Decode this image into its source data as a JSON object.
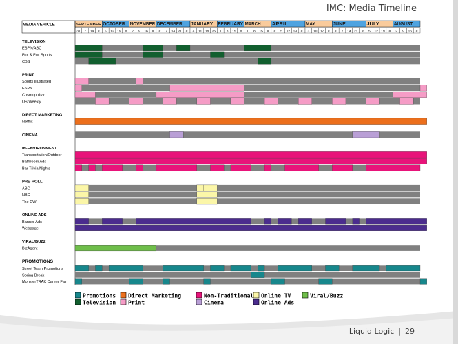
{
  "title": "IMC: Media Timeline",
  "footer": {
    "company": "Liquid Logic",
    "separator": "|",
    "page": "29"
  },
  "chart_data": {
    "type": "gantt",
    "header_label": "MEDIA VEHICLE",
    "months": [
      {
        "name": "SEPTEMBER",
        "weeks": [
          "31",
          "7",
          "14",
          "#"
        ],
        "color": "#f9cb9c"
      },
      {
        "name": "OCTOBER",
        "weeks": [
          "5",
          "12",
          "19",
          "#"
        ],
        "color": "#4fa3e0"
      },
      {
        "name": "NOVEMBER",
        "weeks": [
          "2",
          "9",
          "16",
          "#"
        ],
        "color": "#f9cb9c"
      },
      {
        "name": "DECEMBER",
        "weeks": [
          "#",
          "7",
          "14",
          "21",
          "#"
        ],
        "color": "#4fa3e0"
      },
      {
        "name": "JANUARY",
        "weeks": [
          "4",
          "11",
          "18",
          "25"
        ],
        "color": "#f9cb9c"
      },
      {
        "name": "FEBRUARY",
        "weeks": [
          "1",
          "8",
          "15",
          "#"
        ],
        "color": "#4fa3e0"
      },
      {
        "name": "MARCH",
        "weeks": [
          "1",
          "8",
          "15",
          "#"
        ],
        "color": "#f9cb9c"
      },
      {
        "name": "APRIL",
        "weeks": [
          "#",
          "5",
          "12",
          "19",
          "#"
        ],
        "color": "#4fa3e0"
      },
      {
        "name": "MAY",
        "weeks": [
          "3",
          "10",
          "17",
          "#"
        ],
        "color": "#f9cb9c"
      },
      {
        "name": "JUNE",
        "weeks": [
          "#",
          "7",
          "14",
          "21",
          "#"
        ],
        "color": "#4fa3e0"
      },
      {
        "name": "JULY",
        "weeks": [
          "5",
          "12",
          "19",
          "#"
        ],
        "color": "#f9cb9c"
      },
      {
        "name": "AUGUST",
        "weeks": [
          "2",
          "9",
          "16",
          "#"
        ],
        "color": "#4fa3e0"
      }
    ],
    "colors": {
      "inactive": "#808080",
      "Promotions": "#17878c",
      "Direct Marketing": "#ec6f1c",
      "Non-Traditional": "#e8147a",
      "Online TV": "#fbf6a8",
      "Viral/Buzz": "#6fbe4a",
      "Television": "#125f2f",
      "Print": "#f59cc6",
      "Cinema": "#b99fd6",
      "Online Ads": "#4b2c8e"
    },
    "rows": [
      {
        "label": "TELEVISION",
        "kind": "header"
      },
      {
        "label": "ESPN/ABC",
        "cat": "Television",
        "active": [
          [
            0,
            3
          ],
          [
            10,
            12
          ],
          [
            15,
            16
          ],
          [
            25,
            28
          ]
        ]
      },
      {
        "label": "Fox & Fox Sports",
        "cat": "Television",
        "active": [
          [
            0,
            3
          ],
          [
            10,
            12
          ],
          [
            20,
            21
          ]
        ]
      },
      {
        "label": "CBS",
        "cat": "Television",
        "active": [
          [
            2,
            5
          ],
          [
            27,
            28
          ]
        ]
      },
      {
        "label": "",
        "kind": "spacer"
      },
      {
        "label": "PRINT",
        "kind": "header"
      },
      {
        "label": "Sports Illustrated",
        "cat": "Print",
        "active": [
          [
            0,
            1
          ],
          [
            9,
            9
          ]
        ]
      },
      {
        "label": "ESPN",
        "cat": "Print",
        "active": [
          [
            0,
            0
          ],
          [
            14,
            24
          ],
          [
            51,
            51
          ]
        ]
      },
      {
        "label": "Cosmopolitan",
        "cat": "Print",
        "active": [
          [
            0,
            2
          ],
          [
            12,
            24
          ],
          [
            47,
            51
          ]
        ]
      },
      {
        "label": "US Weekly",
        "cat": "Print",
        "active": [
          [
            3,
            4
          ],
          [
            8,
            9
          ],
          [
            13,
            14
          ],
          [
            18,
            19
          ],
          [
            23,
            24
          ],
          [
            28,
            29
          ],
          [
            33,
            34
          ],
          [
            38,
            39
          ],
          [
            43,
            44
          ],
          [
            48,
            49
          ]
        ]
      },
      {
        "label": "",
        "kind": "spacer"
      },
      {
        "label": "DIRECT MARKETING",
        "kind": "header"
      },
      {
        "label": "Netflix",
        "cat": "Direct Marketing",
        "active": [
          [
            0,
            51
          ]
        ]
      },
      {
        "label": "",
        "kind": "spacer"
      },
      {
        "label": "CINEMA",
        "kind": "header",
        "cat": "Cinema",
        "active": [
          [
            14,
            15
          ],
          [
            41,
            44
          ]
        ]
      },
      {
        "label": "",
        "kind": "spacer"
      },
      {
        "label": "IN-ENVIRONMENT",
        "kind": "header"
      },
      {
        "label": "Transportation/Outdoor",
        "cat": "Non-Traditional",
        "active": [
          [
            0,
            51
          ]
        ]
      },
      {
        "label": "Bathroom Ads",
        "cat": "Non-Traditional",
        "active": [
          [
            0,
            51
          ]
        ]
      },
      {
        "label": "Bar Trivia Nights",
        "cat": "Non-Traditional",
        "active": [
          [
            0,
            0
          ],
          [
            2,
            2
          ],
          [
            4,
            6
          ],
          [
            9,
            9
          ],
          [
            12,
            17
          ],
          [
            20,
            21
          ],
          [
            23,
            25
          ],
          [
            28,
            28
          ],
          [
            31,
            35
          ],
          [
            38,
            40
          ],
          [
            43,
            50
          ]
        ]
      },
      {
        "label": "",
        "kind": "spacer"
      },
      {
        "label": "PRE-ROLL",
        "kind": "header"
      },
      {
        "label": "ABC",
        "cat": "Online TV",
        "active": [
          [
            0,
            1
          ],
          [
            18,
            18
          ],
          [
            19,
            20
          ]
        ]
      },
      {
        "label": "NBC",
        "cat": "Online TV",
        "active": [
          [
            0,
            1
          ],
          [
            18,
            20
          ]
        ]
      },
      {
        "label": "The CW",
        "cat": "Online TV",
        "active": [
          [
            0,
            1
          ],
          [
            18,
            20
          ]
        ]
      },
      {
        "label": "",
        "kind": "spacer"
      },
      {
        "label": "ONLINE ADS",
        "kind": "header"
      },
      {
        "label": "Banner Ads",
        "cat": "Online Ads",
        "active": [
          [
            0,
            1
          ],
          [
            4,
            6
          ],
          [
            9,
            25
          ],
          [
            28,
            28
          ],
          [
            30,
            31
          ],
          [
            33,
            34
          ],
          [
            37,
            39
          ],
          [
            41,
            41
          ],
          [
            43,
            51
          ]
        ]
      },
      {
        "label": "Webpage",
        "cat": "Online Ads",
        "active": [
          [
            0,
            51
          ]
        ]
      },
      {
        "label": "",
        "kind": "spacer"
      },
      {
        "label": "VIRAL/BUZZ",
        "kind": "header"
      },
      {
        "label": "BizAgent",
        "cat": "Viral/Buzz",
        "active": [
          [
            0,
            11
          ]
        ]
      },
      {
        "label": "",
        "kind": "spacer"
      },
      {
        "label": "PROMOTIONS",
        "kind": "header"
      },
      {
        "label": "Street Team Promotions",
        "cat": "Promotions",
        "active": [
          [
            0,
            1
          ],
          [
            3,
            3
          ],
          [
            5,
            9
          ],
          [
            13,
            18
          ],
          [
            20,
            21
          ],
          [
            23,
            25
          ],
          [
            27,
            27
          ],
          [
            30,
            34
          ],
          [
            37,
            38
          ],
          [
            41,
            44
          ],
          [
            46,
            50
          ]
        ]
      },
      {
        "label": "Spring Break",
        "cat": "Promotions",
        "active": [
          [
            26,
            27
          ]
        ]
      },
      {
        "label": "MonsterTRAK Career Fair",
        "cat": "Promotions",
        "active": [
          [
            0,
            0
          ],
          [
            8,
            9
          ],
          [
            13,
            13
          ],
          [
            19,
            19
          ],
          [
            29,
            30
          ],
          [
            36,
            37
          ],
          [
            51,
            51
          ]
        ]
      }
    ],
    "legend": [
      {
        "label": "Promotions"
      },
      {
        "label": "Direct Marketing"
      },
      {
        "label": "Non-Traditional"
      },
      {
        "label": "Online TV"
      },
      {
        "label": "Viral/Buzz"
      },
      {
        "label": "Television"
      },
      {
        "label": "Print"
      },
      {
        "label": "Cinema"
      },
      {
        "label": "Online Ads"
      }
    ]
  }
}
